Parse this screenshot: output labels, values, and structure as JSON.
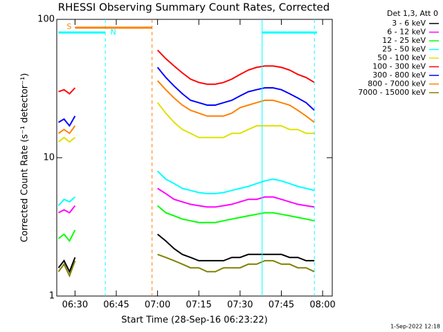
{
  "chart_data": {
    "type": "line",
    "title": "RHESSI Observing Summary Count Rates, Corrected",
    "x_label": "Start Time (28-Sep-16 06:23:22)",
    "y_label": "Corrected Count Rate (s⁻¹ detector⁻¹)",
    "legend_title": "Det 1,3, Att 0",
    "footer": "1-Sep-2022 12:18",
    "log_scale": true,
    "ylim": [
      1,
      100
    ],
    "yticks": [
      1,
      10,
      100
    ],
    "xlim": [
      "06:23:22",
      "08:03:30"
    ],
    "xticks": [
      "06:30",
      "06:45",
      "07:00",
      "07:15",
      "07:30",
      "07:45",
      "08:00"
    ],
    "x": [
      "06:24",
      "06:26",
      "06:28",
      "06:30",
      "06:45",
      "07:00",
      "07:03",
      "07:06",
      "07:09",
      "07:12",
      "07:15",
      "07:18",
      "07:21",
      "07:24",
      "07:27",
      "07:30",
      "07:33",
      "07:36",
      "07:39",
      "07:42",
      "07:45",
      "07:48",
      "07:51",
      "07:54",
      "07:57"
    ],
    "series": [
      {
        "name": "3 - 6 keV",
        "color": "#000000",
        "values": [
          1.6,
          1.8,
          1.5,
          1.9,
          null,
          2.8,
          2.5,
          2.2,
          2,
          1.9,
          1.8,
          1.8,
          1.8,
          1.8,
          1.9,
          1.9,
          2,
          2,
          2,
          2,
          2,
          1.9,
          1.9,
          1.8,
          1.8
        ]
      },
      {
        "name": "6 - 12 keV",
        "color": "#ff00ff",
        "values": [
          4,
          4.2,
          4,
          4.5,
          null,
          6,
          5.5,
          5,
          4.8,
          4.6,
          4.5,
          4.4,
          4.4,
          4.5,
          4.6,
          4.8,
          5,
          5,
          5.2,
          5.2,
          5,
          4.8,
          4.6,
          4.5,
          4.4
        ]
      },
      {
        "name": "12 - 25 keV",
        "color": "#00ff00",
        "values": [
          2.6,
          2.8,
          2.5,
          3,
          null,
          4.5,
          4,
          3.8,
          3.6,
          3.5,
          3.4,
          3.4,
          3.4,
          3.5,
          3.6,
          3.7,
          3.8,
          3.9,
          4,
          4,
          3.9,
          3.8,
          3.7,
          3.6,
          3.5
        ]
      },
      {
        "name": "25 - 50 keV",
        "color": "#00ffff",
        "values": [
          4.5,
          5,
          4.8,
          5.2,
          null,
          8,
          7,
          6.5,
          6,
          5.8,
          5.6,
          5.5,
          5.5,
          5.6,
          5.8,
          6,
          6.2,
          6.5,
          6.8,
          7,
          6.8,
          6.5,
          6.2,
          6,
          5.8
        ]
      },
      {
        "name": "50 - 100 keV",
        "color": "#e0e000",
        "values": [
          13,
          14,
          13,
          14,
          null,
          25,
          21,
          18,
          16,
          15,
          14,
          14,
          14,
          14,
          15,
          15,
          16,
          17,
          17,
          17,
          17,
          16,
          16,
          15,
          15
        ]
      },
      {
        "name": "100 - 300 keV",
        "color": "#ff0000",
        "values": [
          30,
          31,
          29,
          32,
          null,
          60,
          52,
          46,
          41,
          37,
          35,
          34,
          34,
          35,
          37,
          40,
          43,
          45,
          46,
          46,
          45,
          43,
          40,
          38,
          35
        ]
      },
      {
        "name": "300 - 800 keV",
        "color": "#0000ff",
        "values": [
          18,
          19,
          17,
          20,
          null,
          45,
          38,
          33,
          29,
          26,
          25,
          24,
          24,
          25,
          26,
          28,
          30,
          31,
          32,
          32,
          31,
          29,
          27,
          25,
          22
        ]
      },
      {
        "name": "800 - 7000 keV",
        "color": "#ff8000",
        "values": [
          15,
          16,
          15,
          17,
          null,
          36,
          31,
          27,
          24,
          22,
          21,
          20,
          20,
          20,
          21,
          23,
          24,
          25,
          26,
          26,
          25,
          24,
          22,
          20,
          18
        ]
      },
      {
        "name": "7000 - 15000 keV",
        "color": "#808000",
        "values": [
          1.5,
          1.7,
          1.4,
          1.8,
          null,
          2,
          1.9,
          1.8,
          1.7,
          1.6,
          1.6,
          1.5,
          1.5,
          1.6,
          1.6,
          1.6,
          1.7,
          1.7,
          1.8,
          1.8,
          1.7,
          1.7,
          1.6,
          1.6,
          1.5
        ]
      }
    ],
    "flags": [
      {
        "label": "S",
        "color": "#ff8000",
        "start": "06:30",
        "end": "06:58"
      },
      {
        "label": "N",
        "color": "#00ffff",
        "start": "06:24",
        "end": "06:41"
      },
      {
        "color": "#00ffff",
        "start": "07:38",
        "end": "07:58"
      }
    ],
    "markers": [
      {
        "x": "06:41",
        "color": "#00ffff",
        "dashed": true
      },
      {
        "x": "06:58",
        "color": "#ff8000",
        "dashed": true
      },
      {
        "x": "07:38",
        "color": "#00ffff",
        "dashed": false
      },
      {
        "x": "07:57",
        "color": "#00ffff",
        "dashed": true
      }
    ]
  }
}
